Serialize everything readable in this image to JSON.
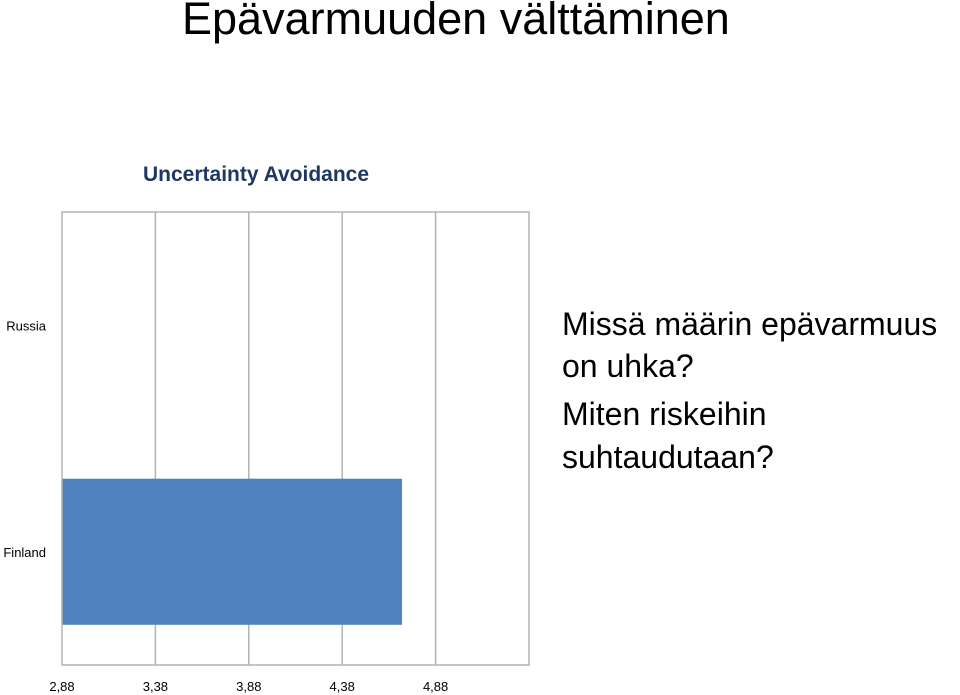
{
  "slide": {
    "title": "Epävarmuuden välttäminen",
    "questions": [
      "Missä määrin epävarmuus on uhka?",
      "Miten riskeihin suhtaudutaan?"
    ]
  },
  "chart_data": {
    "type": "bar",
    "orientation": "horizontal",
    "title": "Uncertainty Avoidance",
    "categories": [
      "Finland",
      "Russia"
    ],
    "values": [
      4.7,
      null
    ],
    "xlim": [
      2.88,
      5.38
    ],
    "x_ticks": [
      "2,88",
      "3,38",
      "3,88",
      "4,38",
      "4,88"
    ],
    "x_tick_values": [
      2.88,
      3.38,
      3.88,
      4.38,
      4.88
    ],
    "grid": true,
    "legend": "none",
    "bar_color": "#4f81bd",
    "grid_color": "#b3b3b3"
  }
}
